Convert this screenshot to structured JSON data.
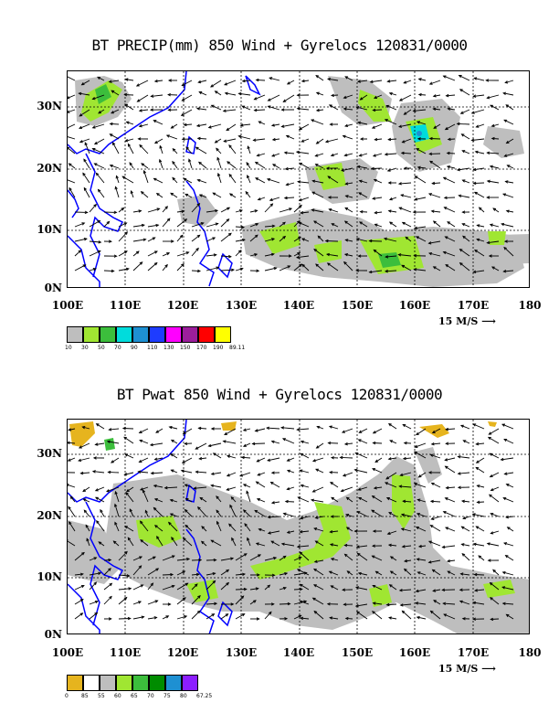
{
  "top": {
    "title": "BT PRECIP(mm) 850 Wind + Gyrelocs 120831/0000",
    "legend": [
      "10",
      "30",
      "50",
      "70",
      "90",
      "110",
      "130",
      "150",
      "170",
      "190",
      "89.11"
    ],
    "legend_colors": [
      "#bebebe",
      "#a0e632",
      "#3cbe3c",
      "#00dcdc",
      "#1e90d2",
      "#1e3cff",
      "#ff00ff",
      "#9b1e9b",
      "#ff0000",
      "#ffff00"
    ]
  },
  "bottom": {
    "title": "BT Pwat 850 Wind + Gyrelocs 120831/0000",
    "legend": [
      "0",
      "85",
      "55",
      "60",
      "65",
      "70",
      "75",
      "80",
      "67.25"
    ],
    "legend_colors": [
      "#e6b41e",
      "#ffffff",
      "#bebebe",
      "#a0e632",
      "#3cbe3c",
      "#008c00",
      "#1e90d2",
      "#8c1eff"
    ]
  },
  "axes": {
    "x_ticks": [
      "100E",
      "110E",
      "120E",
      "130E",
      "140E",
      "150E",
      "160E",
      "170E",
      "180"
    ],
    "y_ticks": [
      "30N",
      "20N",
      "10N",
      "0N"
    ]
  },
  "reference_vector": "15 M/S"
}
